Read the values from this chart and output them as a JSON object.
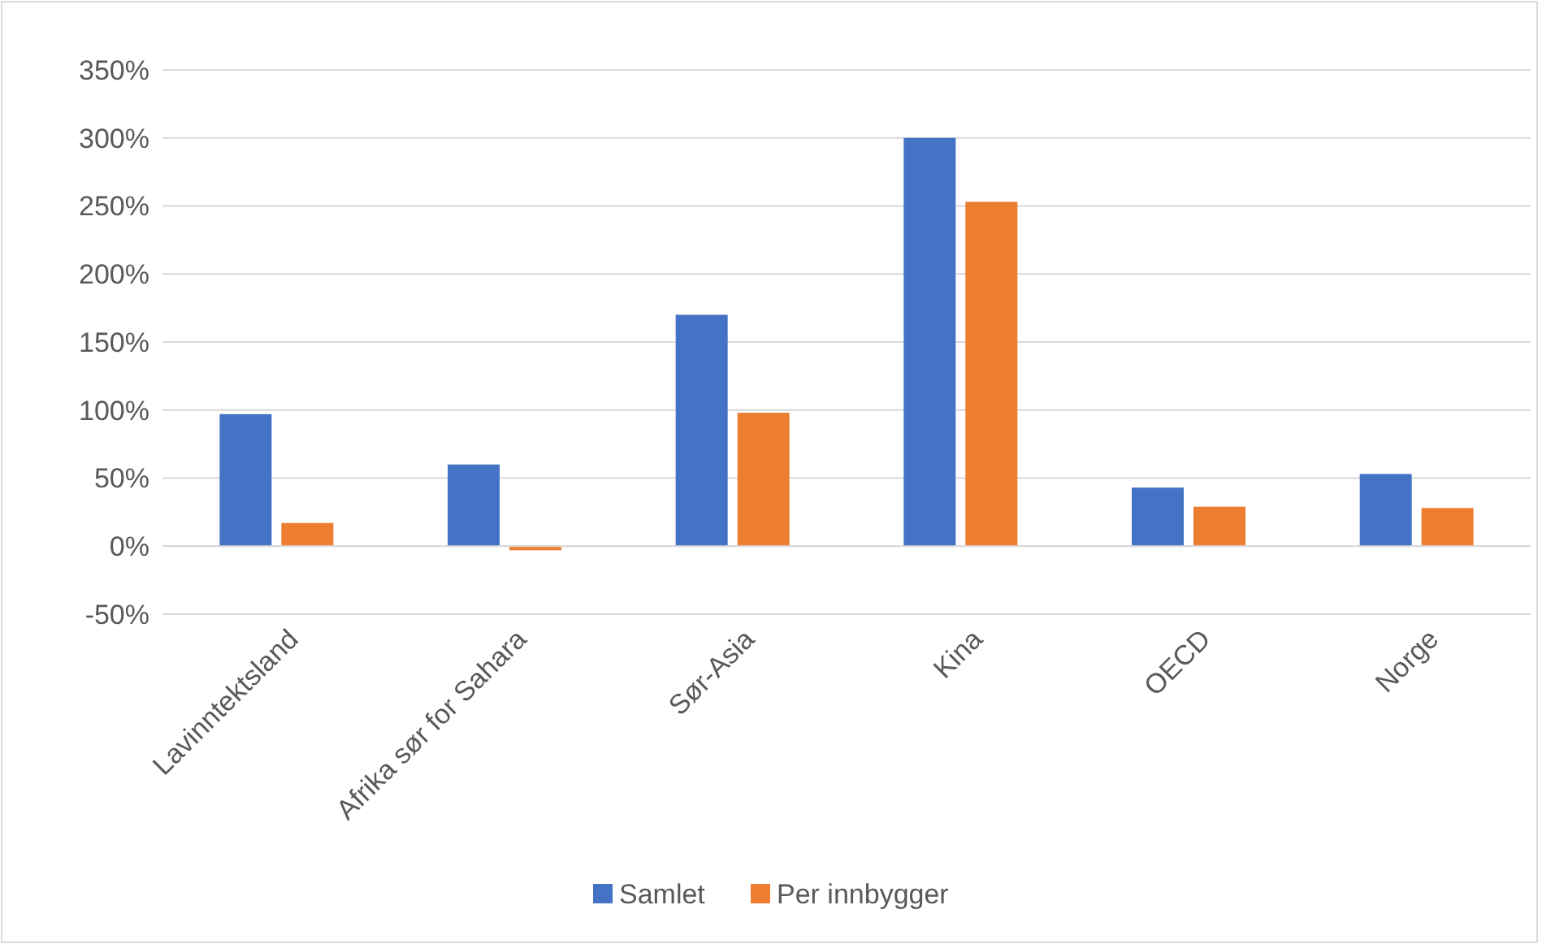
{
  "chart_data": {
    "type": "bar",
    "categories": [
      "Lavinntektsland",
      "Afrika sør for Sahara",
      "Sør-Asia",
      "Kina",
      "OECD",
      "Norge"
    ],
    "series": [
      {
        "name": "Samlet",
        "color": "#4472c4",
        "values": [
          97,
          60,
          170,
          300,
          43,
          53
        ]
      },
      {
        "name": "Per innbygger",
        "color": "#ed7d31",
        "values": [
          17,
          -3,
          98,
          253,
          29,
          28
        ]
      }
    ],
    "ylim": [
      -50,
      350
    ],
    "yticks": [
      {
        "value": -50,
        "label": "-50%"
      },
      {
        "value": 0,
        "label": "0%"
      },
      {
        "value": 50,
        "label": "50%"
      },
      {
        "value": 100,
        "label": "100%"
      },
      {
        "value": 150,
        "label": "150%"
      },
      {
        "value": 200,
        "label": "200%"
      },
      {
        "value": 250,
        "label": "250%"
      },
      {
        "value": 300,
        "label": "300%"
      },
      {
        "value": 350,
        "label": "350%"
      }
    ],
    "grid": "y",
    "legend": "bottom"
  }
}
